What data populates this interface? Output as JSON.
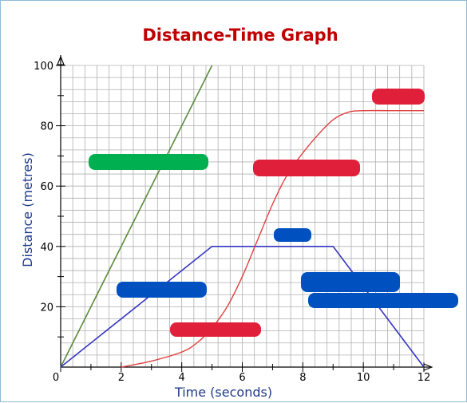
{
  "chart_data": {
    "type": "line",
    "title": "Distance-Time Graph",
    "xlabel": "Time (seconds)",
    "ylabel": "Distance (metres)",
    "xlim": [
      0,
      12
    ],
    "ylim": [
      0,
      100
    ],
    "x_ticks": [
      0,
      2,
      4,
      6,
      8,
      10,
      12
    ],
    "x_tick_labels": [
      "0",
      "2",
      "4",
      "6",
      "8",
      "10",
      "12"
    ],
    "y_ticks": [
      20,
      40,
      60,
      80,
      100
    ],
    "y_tick_labels": [
      "20",
      "40",
      "60",
      "80",
      "100"
    ],
    "grid": true,
    "minor_grid_step_x": 0.4,
    "minor_grid_step_y": 4,
    "series": [
      {
        "color": "#5a8a3c",
        "x": [
          0,
          5
        ],
        "y": [
          0,
          100
        ]
      },
      {
        "color": "#3535c0",
        "x": [
          0,
          5,
          9,
          12
        ],
        "y": [
          0,
          40,
          40,
          0
        ]
      },
      {
        "color": "#e04040",
        "x": [
          2,
          3,
          4,
          4.5,
          5,
          5.5,
          6,
          6.5,
          7,
          7.5,
          8,
          8.5,
          9,
          9.5,
          10,
          11,
          12
        ],
        "y": [
          0,
          2,
          5,
          8,
          13,
          20,
          30,
          42,
          54,
          64,
          71,
          77,
          82,
          84.5,
          85,
          85,
          85
        ]
      }
    ],
    "colors": {
      "green_marker": "#00b050",
      "blue_marker": "#0050c0",
      "red_marker": "#e0203a",
      "title": "#c00000",
      "axis_label": "#1f3a8a",
      "grid": "#b0b0b0",
      "frame": "#8fb9d8"
    }
  }
}
